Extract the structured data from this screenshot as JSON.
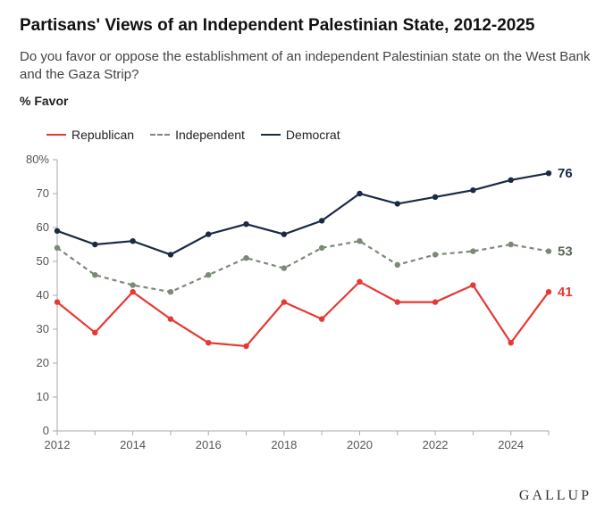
{
  "title": "Partisans' Views of an Independent Palestinian State, 2012-2025",
  "subtitle": "Do you favor or oppose the establishment of an independent Palestinian state on the West Bank and the Gaza Strip?",
  "pct_label": "% Favor",
  "legend": {
    "rep": "Republican",
    "ind": "Independent",
    "dem": "Democrat"
  },
  "footer": "GALLUP",
  "chart": {
    "type": "line",
    "xlim": [
      2012,
      2025
    ],
    "ylim": [
      0,
      80
    ],
    "ytick_step": 10,
    "xtick_step": 2,
    "y_suffix_at_max": "%",
    "background_color": "#ffffff",
    "border_color": "#aaaaaa",
    "axis_font_size": 13,
    "years": [
      2012,
      2013,
      2014,
      2015,
      2016,
      2017,
      2018,
      2019,
      2020,
      2021,
      2022,
      2023,
      2024,
      2025
    ],
    "series": {
      "rep": {
        "label": "Republican",
        "color": "#e53935",
        "line_width": 2.2,
        "dash": null,
        "marker": "circle",
        "values": [
          38,
          29,
          41,
          33,
          26,
          25,
          38,
          33,
          44,
          38,
          38,
          43,
          26,
          41
        ],
        "end_label": 41
      },
      "ind": {
        "label": "Independent",
        "color": "#7a8a77",
        "line_width": 2.2,
        "dash": "5 4",
        "marker": "circle",
        "values": [
          54,
          46,
          43,
          41,
          46,
          51,
          48,
          54,
          56,
          49,
          52,
          53,
          55,
          53
        ],
        "end_label": 53
      },
      "dem": {
        "label": "Democrat",
        "color": "#1a2a44",
        "line_width": 2.2,
        "dash": null,
        "marker": "circle",
        "values": [
          59,
          55,
          56,
          52,
          58,
          61,
          58,
          62,
          70,
          67,
          69,
          71,
          74,
          76
        ],
        "end_label": 76
      }
    }
  }
}
